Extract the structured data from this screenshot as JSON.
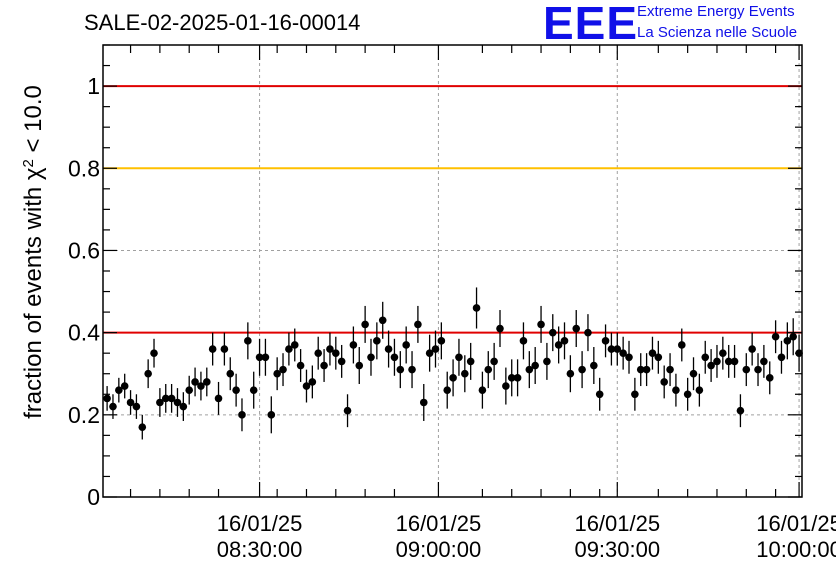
{
  "title": "SALE-02-2025-01-16-00014",
  "logo": {
    "letters": "EEE",
    "line1": "Extreme Energy Events",
    "line2": "La Scienza nelle Scuole",
    "color": "#1010e8"
  },
  "chart_data": {
    "type": "scatter",
    "title": "SALE-02-2025-01-16-00014",
    "ylabel": "fraction of events with χ² < 10.0",
    "xlabel": "",
    "ylim": [
      0,
      1.1
    ],
    "yticks": [
      0,
      0.2,
      0.4,
      0.6,
      0.8,
      1
    ],
    "ytick_labels": [
      "0",
      "0.2",
      "0.4",
      "0.6",
      "0.8",
      "1"
    ],
    "x_unit": "minutes after 08:00:00 on 16/01/25",
    "xlim": [
      0.3,
      119.5
    ],
    "xticks": [
      {
        "x": 27,
        "date": "16/01/25",
        "time": "08:30:00"
      },
      {
        "x": 57.5,
        "date": "16/01/25",
        "time": "09:00:00"
      },
      {
        "x": 88,
        "date": "16/01/25",
        "time": "09:30:00"
      },
      {
        "x": 119,
        "date": "16/01/25",
        "time": "10:00:00"
      }
    ],
    "grid": true,
    "reference_lines": [
      {
        "y": 1.0,
        "color": "#e00000"
      },
      {
        "y": 0.8,
        "color": "#ffc000"
      },
      {
        "y": 0.4,
        "color": "#e00000"
      }
    ],
    "series": [
      {
        "marker_color": "#000000",
        "points": [
          [
            1,
            0.24,
            0.03
          ],
          [
            2,
            0.22,
            0.03
          ],
          [
            3,
            0.26,
            0.03
          ],
          [
            4,
            0.27,
            0.03
          ],
          [
            5,
            0.23,
            0.03
          ],
          [
            6,
            0.22,
            0.03
          ],
          [
            7,
            0.17,
            0.03
          ],
          [
            8,
            0.3,
            0.035
          ],
          [
            9,
            0.35,
            0.035
          ],
          [
            10,
            0.23,
            0.035
          ],
          [
            11,
            0.24,
            0.035
          ],
          [
            12,
            0.24,
            0.035
          ],
          [
            13,
            0.23,
            0.035
          ],
          [
            14,
            0.22,
            0.035
          ],
          [
            15,
            0.26,
            0.035
          ],
          [
            16,
            0.28,
            0.035
          ],
          [
            17,
            0.27,
            0.035
          ],
          [
            18,
            0.28,
            0.035
          ],
          [
            19,
            0.36,
            0.04
          ],
          [
            20,
            0.24,
            0.04
          ],
          [
            21,
            0.36,
            0.04
          ],
          [
            22,
            0.3,
            0.04
          ],
          [
            23,
            0.26,
            0.04
          ],
          [
            24,
            0.2,
            0.04
          ],
          [
            25,
            0.38,
            0.045
          ],
          [
            26,
            0.26,
            0.045
          ],
          [
            27,
            0.34,
            0.045
          ],
          [
            28,
            0.34,
            0.045
          ],
          [
            29,
            0.2,
            0.045
          ],
          [
            30,
            0.3,
            0.04
          ],
          [
            31,
            0.31,
            0.04
          ],
          [
            32,
            0.36,
            0.04
          ],
          [
            33,
            0.37,
            0.04
          ],
          [
            34,
            0.32,
            0.04
          ],
          [
            35,
            0.27,
            0.04
          ],
          [
            36,
            0.28,
            0.04
          ],
          [
            37,
            0.35,
            0.04
          ],
          [
            38,
            0.32,
            0.04
          ],
          [
            39,
            0.36,
            0.04
          ],
          [
            40,
            0.35,
            0.04
          ],
          [
            41,
            0.33,
            0.04
          ],
          [
            42,
            0.21,
            0.04
          ],
          [
            43,
            0.37,
            0.045
          ],
          [
            44,
            0.32,
            0.045
          ],
          [
            45,
            0.42,
            0.045
          ],
          [
            46,
            0.34,
            0.045
          ],
          [
            47,
            0.38,
            0.045
          ],
          [
            48,
            0.43,
            0.045
          ],
          [
            49,
            0.36,
            0.045
          ],
          [
            50,
            0.34,
            0.045
          ],
          [
            51,
            0.31,
            0.045
          ],
          [
            52,
            0.37,
            0.045
          ],
          [
            53,
            0.31,
            0.045
          ],
          [
            54,
            0.42,
            0.045
          ],
          [
            55,
            0.23,
            0.045
          ],
          [
            56,
            0.35,
            0.045
          ],
          [
            57,
            0.36,
            0.045
          ],
          [
            58,
            0.38,
            0.045
          ],
          [
            59,
            0.26,
            0.045
          ],
          [
            60,
            0.29,
            0.045
          ],
          [
            61,
            0.34,
            0.045
          ],
          [
            62,
            0.3,
            0.045
          ],
          [
            63,
            0.33,
            0.045
          ],
          [
            64,
            0.46,
            0.05
          ],
          [
            65,
            0.26,
            0.045
          ],
          [
            66,
            0.31,
            0.045
          ],
          [
            67,
            0.33,
            0.045
          ],
          [
            68,
            0.41,
            0.045
          ],
          [
            69,
            0.27,
            0.045
          ],
          [
            70,
            0.29,
            0.045
          ],
          [
            71,
            0.29,
            0.045
          ],
          [
            72,
            0.38,
            0.045
          ],
          [
            73,
            0.31,
            0.045
          ],
          [
            74,
            0.32,
            0.045
          ],
          [
            75,
            0.42,
            0.045
          ],
          [
            76,
            0.33,
            0.045
          ],
          [
            77,
            0.4,
            0.045
          ],
          [
            78,
            0.37,
            0.045
          ],
          [
            79,
            0.38,
            0.045
          ],
          [
            80,
            0.3,
            0.045
          ],
          [
            81,
            0.41,
            0.045
          ],
          [
            82,
            0.31,
            0.045
          ],
          [
            83,
            0.4,
            0.045
          ],
          [
            84,
            0.32,
            0.045
          ],
          [
            85,
            0.25,
            0.04
          ],
          [
            86,
            0.38,
            0.04
          ],
          [
            87,
            0.36,
            0.04
          ],
          [
            88,
            0.36,
            0.04
          ],
          [
            89,
            0.35,
            0.04
          ],
          [
            90,
            0.34,
            0.04
          ],
          [
            91,
            0.25,
            0.04
          ],
          [
            92,
            0.31,
            0.04
          ],
          [
            93,
            0.31,
            0.04
          ],
          [
            94,
            0.35,
            0.04
          ],
          [
            95,
            0.34,
            0.04
          ],
          [
            96,
            0.28,
            0.04
          ],
          [
            97,
            0.31,
            0.04
          ],
          [
            98,
            0.26,
            0.04
          ],
          [
            99,
            0.37,
            0.04
          ],
          [
            100,
            0.25,
            0.04
          ],
          [
            101,
            0.3,
            0.04
          ],
          [
            102,
            0.26,
            0.04
          ],
          [
            103,
            0.34,
            0.04
          ],
          [
            104,
            0.32,
            0.04
          ],
          [
            105,
            0.33,
            0.04
          ],
          [
            106,
            0.35,
            0.04
          ],
          [
            107,
            0.33,
            0.04
          ],
          [
            108,
            0.33,
            0.04
          ],
          [
            109,
            0.21,
            0.04
          ],
          [
            110,
            0.31,
            0.04
          ],
          [
            111,
            0.36,
            0.04
          ],
          [
            112,
            0.31,
            0.04
          ],
          [
            113,
            0.33,
            0.04
          ],
          [
            114,
            0.29,
            0.04
          ],
          [
            115,
            0.39,
            0.04
          ],
          [
            116,
            0.34,
            0.04
          ],
          [
            117,
            0.38,
            0.045
          ],
          [
            118,
            0.39,
            0.045
          ],
          [
            119,
            0.35,
            0.045
          ]
        ]
      }
    ]
  }
}
